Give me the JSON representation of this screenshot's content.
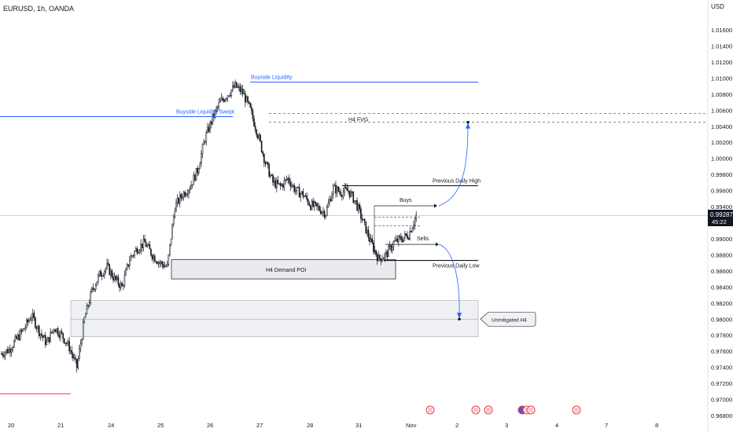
{
  "header": {
    "symbol": "EURUSD, 1h, OANDA"
  },
  "axis": {
    "currency": "USD"
  },
  "price_tag": {
    "price": "0.99287",
    "countdown": "45:22",
    "value": 0.99287
  },
  "chart_data": {
    "type": "candlestick",
    "title": "EURUSD, 1h, OANDA",
    "ylim": [
      0.9675,
      1.0185
    ],
    "x_tick_labels": [
      "20",
      "21",
      "24",
      "25",
      "26",
      "27",
      "28",
      "31",
      "Nov",
      "2",
      "3",
      "4",
      "7",
      "8"
    ],
    "y_tick_labels": [
      "1.01600",
      "1.01400",
      "1.01200",
      "1.01000",
      "1.00800",
      "1.00600",
      "1.00400",
      "1.00200",
      "1.00000",
      "0.99800",
      "0.99600",
      "0.99400",
      "0.99200",
      "0.99000",
      "0.98800",
      "0.98600",
      "0.98400",
      "0.98200",
      "0.98000",
      "0.97800",
      "0.97600",
      "0.97400",
      "0.97200",
      "0.97000",
      "0.96800"
    ],
    "price_path": [
      0.9757,
      0.9762,
      0.9775,
      0.9788,
      0.9805,
      0.9785,
      0.977,
      0.979,
      0.978,
      0.9765,
      0.974,
      0.98,
      0.9835,
      0.9855,
      0.9865,
      0.985,
      0.984,
      0.9875,
      0.9888,
      0.9895,
      0.988,
      0.987,
      0.9865,
      0.994,
      0.9955,
      0.9965,
      0.9985,
      1.0025,
      1.005,
      1.007,
      1.008,
      1.009,
      1.0082,
      1.006,
      1.003,
      0.9995,
      0.997,
      0.9965,
      0.9975,
      0.996,
      0.9955,
      0.9942,
      0.9938,
      0.9932,
      0.9963,
      0.9958,
      0.996,
      0.9945,
      0.992,
      0.9895,
      0.9875,
      0.988,
      0.9895,
      0.99,
      0.9905,
      0.9929
    ],
    "annotations": {
      "buyside_liquidity": {
        "label": "Buyside Liquidity",
        "price": 1.0095
      },
      "buyside_swept": {
        "label": "Buyside Liquidity Swept",
        "price": 1.0052
      },
      "h4_fvg": {
        "label": "H4 FVG",
        "top": 1.0056,
        "bottom": 1.0045
      },
      "previous_daily_high": {
        "label": "Previous Daily High",
        "price": 0.9966
      },
      "previous_daily_low": {
        "label": "Previous Daily Low",
        "price": 0.9873
      },
      "h4_demand_poi": {
        "label": "H4 Demand POI",
        "top": 0.9874,
        "bottom": 0.985
      },
      "unmitigated_zone": {
        "label": "Unmitigated H4",
        "top": 0.9823,
        "bottom": 0.9778,
        "mid": 0.98
      },
      "buys": {
        "label": "Buys",
        "price": 0.9941
      },
      "sells": {
        "label": "Sells",
        "price": 0.9893
      },
      "red_line_price": 0.9707
    },
    "event_markers": 8
  }
}
